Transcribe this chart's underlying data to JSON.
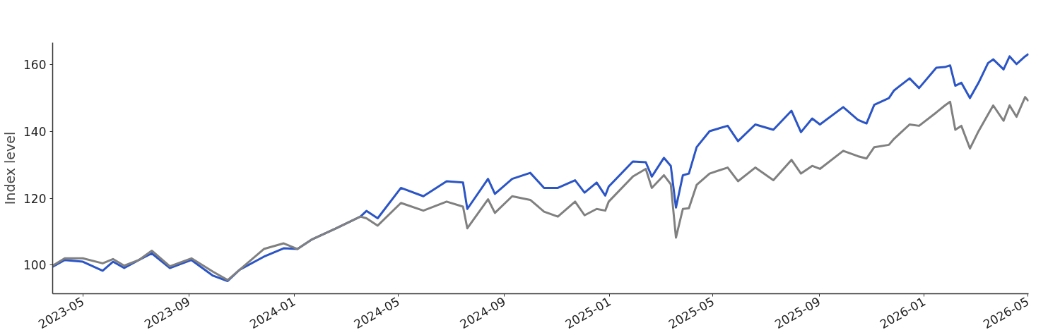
{
  "chart_data": {
    "type": "line",
    "ylabel": "Index level",
    "grid": false,
    "x": [
      "2023-03-27",
      "2023-04-10",
      "2023-05-01",
      "2023-05-24",
      "2023-06-05",
      "2023-06-18",
      "2023-07-05",
      "2023-07-20",
      "2023-08-10",
      "2023-09-04",
      "2023-09-29",
      "2023-10-16",
      "2023-10-30",
      "2023-11-27",
      "2023-12-20",
      "2024-01-05",
      "2024-01-22",
      "2024-02-19",
      "2024-03-18",
      "2024-03-25",
      "2024-04-07",
      "2024-05-04",
      "2024-05-30",
      "2024-06-26",
      "2024-07-15",
      "2024-07-20",
      "2024-08-13",
      "2024-08-21",
      "2024-09-10",
      "2024-10-01",
      "2024-10-17",
      "2024-11-02",
      "2024-11-22",
      "2024-12-03",
      "2024-12-17",
      "2024-12-27",
      "2024-12-31",
      "2025-01-28",
      "2025-02-12",
      "2025-02-19",
      "2025-03-05",
      "2025-03-13",
      "2025-03-19",
      "2025-03-27",
      "2025-04-03",
      "2025-04-12",
      "2025-04-27",
      "2025-05-18",
      "2025-05-30",
      "2025-06-19",
      "2025-07-10",
      "2025-07-31",
      "2025-08-11",
      "2025-08-24",
      "2025-09-02",
      "2025-09-29",
      "2025-10-16",
      "2025-10-26",
      "2025-11-04",
      "2025-11-21",
      "2025-11-27",
      "2025-12-15",
      "2025-12-26",
      "2026-01-15",
      "2026-01-25",
      "2026-01-31",
      "2026-02-06",
      "2026-02-13",
      "2026-02-23",
      "2026-03-05",
      "2026-03-16",
      "2026-03-22",
      "2026-04-03",
      "2026-04-10",
      "2026-04-18",
      "2026-04-28",
      "2026-05-02"
    ],
    "series": [
      {
        "color": "#2b55c6",
        "values": [
          99.5,
          101.5,
          101.0,
          98.3,
          101.0,
          99.1,
          101.5,
          103.5,
          99.1,
          101.5,
          96.8,
          95.2,
          98.6,
          102.5,
          105.0,
          104.8,
          107.7,
          111.0,
          114.5,
          116.2,
          114.0,
          123.1,
          120.6,
          125.1,
          124.7,
          116.8,
          125.8,
          121.3,
          125.8,
          127.6,
          123.1,
          123.1,
          125.4,
          121.7,
          124.7,
          120.8,
          123.5,
          131.0,
          130.8,
          126.5,
          132.1,
          129.7,
          117.2,
          126.9,
          127.4,
          135.3,
          140.1,
          141.7,
          137.1,
          142.1,
          140.5,
          146.2,
          139.8,
          143.9,
          142.1,
          147.3,
          143.5,
          142.4,
          148.0,
          150.0,
          152.3,
          155.9,
          153.0,
          159.1,
          159.3,
          159.8,
          153.7,
          154.6,
          150.0,
          154.6,
          160.5,
          161.6,
          158.6,
          162.5,
          160.2,
          162.5,
          163.2
        ]
      },
      {
        "color": "#808080",
        "values": [
          99.8,
          102.0,
          102.0,
          100.5,
          101.8,
          99.8,
          101.5,
          104.3,
          99.6,
          102.0,
          98.0,
          95.5,
          98.6,
          104.8,
          106.5,
          104.8,
          107.7,
          111.0,
          114.5,
          114.0,
          111.8,
          118.6,
          116.3,
          119.0,
          117.5,
          111.0,
          119.7,
          115.6,
          120.6,
          119.5,
          116.0,
          114.5,
          119.0,
          114.9,
          116.8,
          116.3,
          119.0,
          126.5,
          128.8,
          123.1,
          126.9,
          124.2,
          108.2,
          116.8,
          117.0,
          124.0,
          127.4,
          129.2,
          125.1,
          129.2,
          125.4,
          131.5,
          127.4,
          129.7,
          128.8,
          134.2,
          132.6,
          131.9,
          135.3,
          136.0,
          137.8,
          142.1,
          141.7,
          145.7,
          147.8,
          148.9,
          140.5,
          141.7,
          134.9,
          140.1,
          145.1,
          147.8,
          143.2,
          147.8,
          144.4,
          150.3,
          149.1
        ]
      }
    ],
    "xlim": [
      "2023-03-27",
      "2026-05-02"
    ],
    "xticks": [
      "2023-05",
      "2023-09",
      "2024-01",
      "2024-05",
      "2024-09",
      "2025-01",
      "2025-05",
      "2025-09",
      "2026-01",
      "2026-05"
    ],
    "ylim": [
      91.4,
      166.6
    ],
    "yticks": [
      100,
      120,
      140,
      160
    ]
  }
}
